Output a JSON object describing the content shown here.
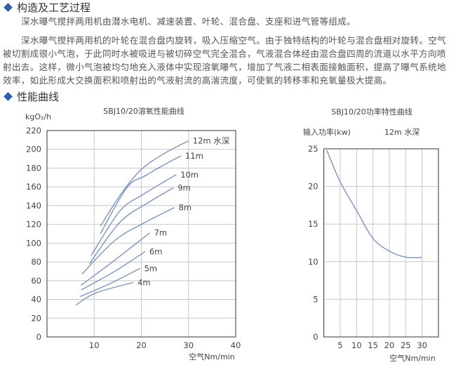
{
  "sections": {
    "structure": {
      "heading": "构造及工艺过程",
      "paragraph1": "深水曝气搅拌两用机由潜水电机、减速装置、叶轮、混合盘、支座和进气管等组成。",
      "paragraph2_lines": [
        "深水曝气搅拌两用机的叶轮在混合盘内旋转，吸入压缩空气。由于独特结构的叶轮与混合盘相对旋转。空气",
        "被切割成很小气泡，于此同时水被吸进与被切碎空气完全混合，气液混合体经由混合盘四周的流道以水平方向喷",
        "射出去。这样，微小气泡被均匀地充入液体中实现溶氧曝气，增加了气液二相表面接触面积，提高了曝气系统地",
        "效率，如此形成大交换面积和喷射出的气液射流的高湍流度，可使氧的转移率和充氧量极大提高。"
      ]
    },
    "performance": {
      "heading": "性能曲线"
    }
  },
  "colors": {
    "accent": "#2c5fb3",
    "curve": "#7b93c9",
    "grid": "#c8c8c8"
  },
  "chart_data": [
    {
      "type": "line",
      "title": "SBJ10/20溶氧性能曲线",
      "ylabel": "kgO₂/h",
      "xlabel": "空气Nm/min",
      "xlim": [
        0,
        40
      ],
      "ylim": [
        0,
        220
      ],
      "xticks": [
        10,
        20,
        30,
        40
      ],
      "yticks": [
        0,
        20,
        40,
        60,
        80,
        100,
        120,
        140,
        160,
        180,
        200,
        220
      ],
      "grid": true,
      "series": [
        {
          "name": "12m 水深",
          "x": [
            11.3,
            15.9,
            20.1,
            25,
            30
          ],
          "y": [
            118,
            154,
            179,
            196,
            209
          ]
        },
        {
          "name": "11m",
          "x": [
            11.3,
            16.9,
            20.9,
            25,
            28.4
          ],
          "y": [
            110,
            159,
            172,
            184,
            193
          ]
        },
        {
          "name": "10m",
          "x": [
            9.4,
            15.4,
            20.4,
            27.4
          ],
          "y": [
            87,
            134,
            152,
            173
          ]
        },
        {
          "name": "9m",
          "x": [
            9,
            15.4,
            21.4,
            26.8
          ],
          "y": [
            78,
            122,
            143,
            159
          ]
        },
        {
          "name": "8m",
          "x": [
            7.4,
            14.4,
            20.4,
            27
          ],
          "y": [
            67,
            103,
            121,
            138
          ]
        },
        {
          "name": "7m",
          "x": [
            7.2,
            14.4,
            21.8
          ],
          "y": [
            55,
            82,
            111
          ]
        },
        {
          "name": "6m",
          "x": [
            7.2,
            14.4,
            20.8
          ],
          "y": [
            50,
            70,
            91
          ]
        },
        {
          "name": "5m",
          "x": [
            7,
            13.4,
            19.7
          ],
          "y": [
            43,
            57,
            73
          ]
        },
        {
          "name": "4m",
          "x": [
            6.1,
            10.4,
            18.3
          ],
          "y": [
            34,
            47,
            58
          ]
        }
      ]
    },
    {
      "type": "line",
      "title": "SBJ10/20功率特性曲线",
      "ylabel": "输入功率(kw)",
      "annotation": "12m 水深",
      "xlabel": "空气Nm/min",
      "xlim": [
        0,
        35
      ],
      "ylim": [
        0,
        25
      ],
      "xticks": [
        5,
        10,
        15,
        20,
        25,
        30
      ],
      "yticks": [
        0,
        5,
        10,
        15,
        20,
        25
      ],
      "grid": true,
      "series": [
        {
          "x": [
            0.9,
            5,
            10,
            15,
            20,
            25,
            30
          ],
          "y": [
            24.8,
            20.6,
            16.8,
            13.1,
            11.4,
            10.6,
            10.55
          ]
        }
      ]
    }
  ]
}
